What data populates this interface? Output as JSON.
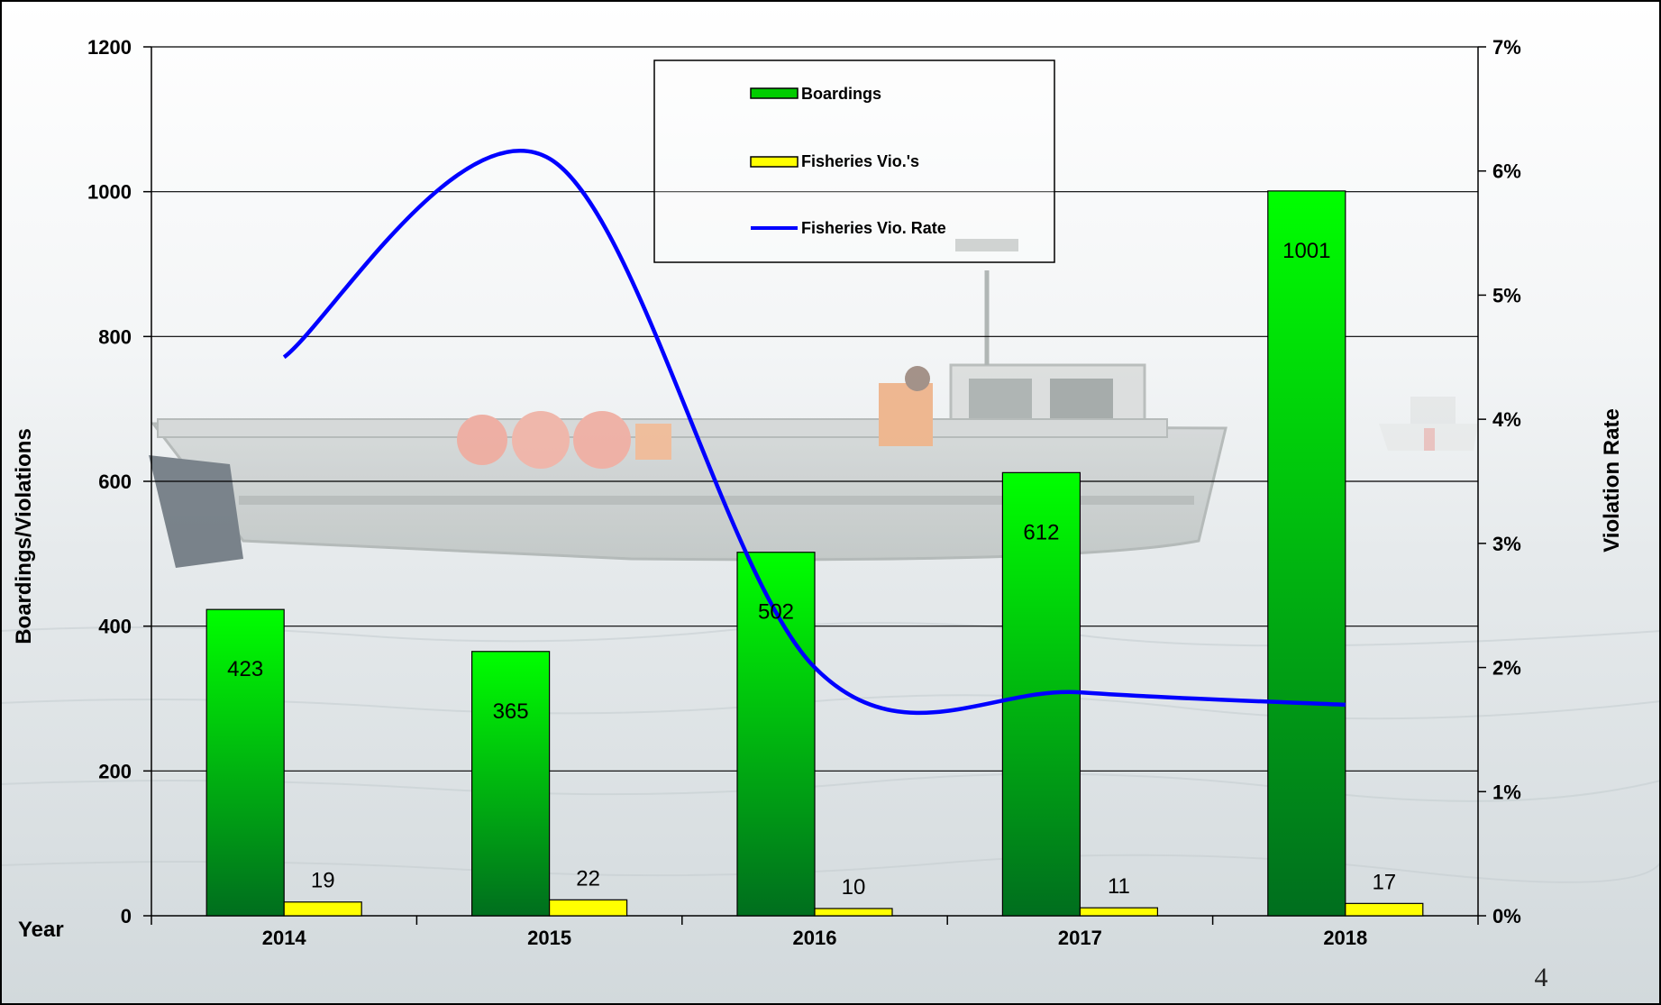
{
  "slide": {
    "page_number": "4"
  },
  "colors": {
    "boardings_top": "#00ff00",
    "boardings_bottom": "#006e1e",
    "violations_fill": "#ffff00",
    "rate_line": "#0000ff",
    "gridline": "#000000"
  },
  "chart_data": {
    "type": "bar",
    "categories": [
      "2014",
      "2015",
      "2016",
      "2017",
      "2018"
    ],
    "x_axis_label": "Year",
    "left_axis": {
      "title": "Boardings/Violations",
      "range": [
        0,
        1200
      ],
      "ticks": [
        0,
        200,
        400,
        600,
        800,
        1000,
        1200
      ],
      "tick_labels": [
        "0",
        "200",
        "400",
        "600",
        "800",
        "1000",
        "1200"
      ]
    },
    "right_axis": {
      "title": "Violation Rate",
      "range": [
        0,
        0.07
      ],
      "ticks": [
        0,
        0.01,
        0.02,
        0.03,
        0.04,
        0.05,
        0.06,
        0.07
      ],
      "tick_labels": [
        "0%",
        "1%",
        "2%",
        "3%",
        "4%",
        "5%",
        "6%",
        "7%"
      ]
    },
    "series": [
      {
        "name": "Boardings",
        "kind": "bar",
        "axis": "left",
        "values": [
          423,
          365,
          502,
          612,
          1001
        ]
      },
      {
        "name": "Fisheries Vio.'s",
        "kind": "bar",
        "axis": "left",
        "values": [
          19,
          22,
          10,
          11,
          17
        ]
      },
      {
        "name": "Fisheries Vio. Rate",
        "kind": "line",
        "axis": "right",
        "smooth": true,
        "values": [
          0.045,
          0.061,
          0.02,
          0.018,
          0.017
        ]
      }
    ],
    "legend": {
      "position": "top-center",
      "entries": [
        "Boardings",
        "Fisheries Vio.'s",
        "Fisheries Vio. Rate"
      ]
    },
    "grid": {
      "horizontal": true,
      "vertical": false
    },
    "background": "photo of a fishing boat on a foggy sea, faded"
  }
}
